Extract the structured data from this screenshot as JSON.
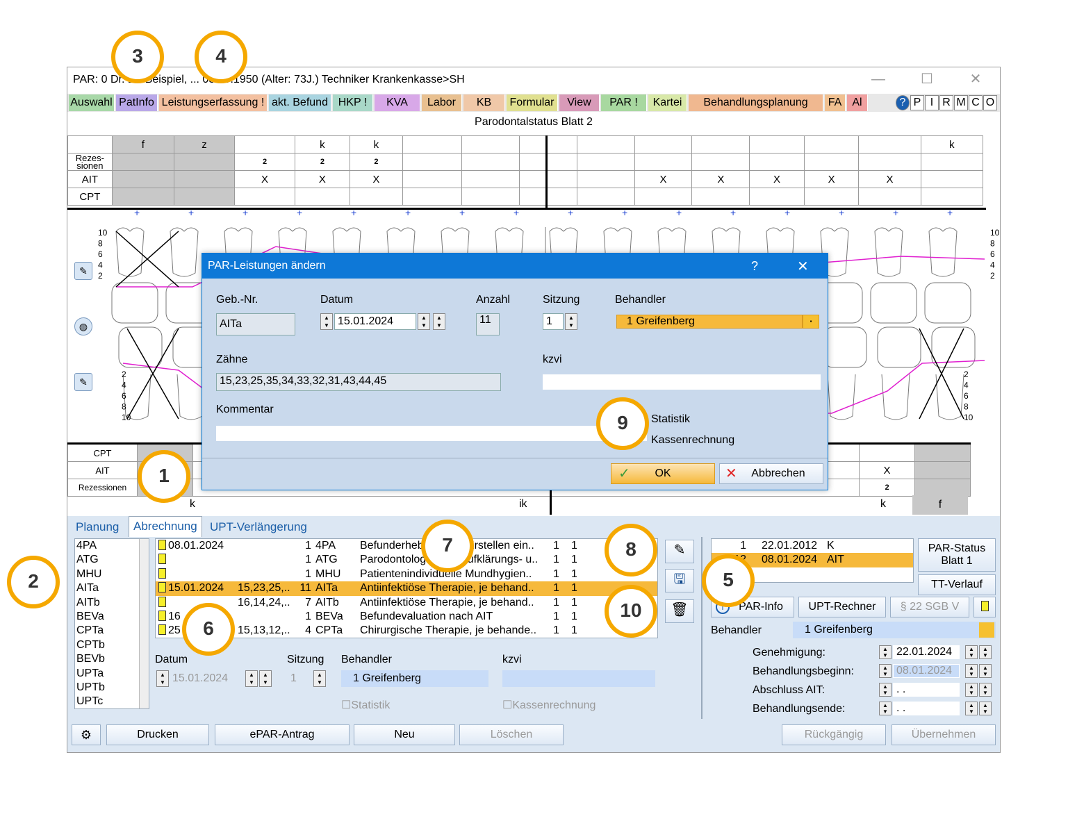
{
  "window": {
    "title": "PAR: 0  Dr. Dr. Beispiel, ... 03.09.1950 (Alter: 73J.)  Techniker Krankenkasse>SH",
    "minimize": "—",
    "maximize": "☐",
    "close": "✕"
  },
  "tabs": [
    {
      "label": "Auswahl",
      "color": "#a8d8a8"
    },
    {
      "label": "PatInfo",
      "color": "#b9a8e8"
    },
    {
      "label": "Leistungserfassung !",
      "color": "#f3c0a0"
    },
    {
      "label": "akt. Befund",
      "color": "#a9d4e0"
    },
    {
      "label": "HKP !",
      "color": "#a9d8c8"
    },
    {
      "label": "KVA",
      "color": "#d8a8e8"
    },
    {
      "label": "Labor",
      "color": "#e8c090"
    },
    {
      "label": "KB",
      "color": "#f0c8a8"
    },
    {
      "label": "Formular",
      "color": "#e0e090"
    },
    {
      "label": "View",
      "color": "#d89ab8"
    },
    {
      "label": "PAR !",
      "color": "#a8d8a0"
    },
    {
      "label": "Kartei",
      "color": "#d8e8a8"
    },
    {
      "label": "Behandlungsplanung",
      "color": "#f0b890"
    },
    {
      "label": "FA",
      "color": "#f0c090"
    },
    {
      "label": "Al",
      "color": "#f0a0a0"
    }
  ],
  "quick_buttons": [
    "?",
    "P",
    "I",
    "R",
    "M",
    "C",
    "O"
  ],
  "sheet_title": "Parodontalstatus Blatt 2",
  "upper_grid": {
    "row_labels": [
      "Rezes-\nsionen",
      "AIT",
      "CPT"
    ],
    "header": [
      "f",
      "z",
      "",
      "k",
      "k",
      "",
      "",
      "",
      "",
      "",
      "",
      "",
      "",
      "",
      "k",
      ""
    ],
    "rezessionen": [
      "",
      "",
      "2",
      "2",
      "2",
      "",
      "",
      "",
      "",
      "",
      "",
      "",
      "",
      "",
      "",
      ""
    ],
    "ait": [
      "",
      "",
      "X",
      "X",
      "X",
      "",
      "",
      "",
      "",
      "X",
      "X",
      "X",
      "X",
      "X",
      ""
    ]
  },
  "scale_labels_top": [
    "10",
    "8",
    "6",
    "4",
    "2"
  ],
  "scale_labels_bottom": [
    "2",
    "4",
    "6",
    "8",
    "10"
  ],
  "lower_grid": {
    "row_labels": [
      "CPT",
      "AIT",
      "Rezessionen"
    ],
    "ait_right": "X",
    "rez_right": "2",
    "bottom": [
      "k",
      "ik",
      "k",
      "f"
    ]
  },
  "lower_tabs": [
    "Planung",
    "Abrechnung",
    "UPT-Verlängerung"
  ],
  "codes": [
    "4PA",
    "ATG",
    "MHU",
    "AITa",
    "AITb",
    "BEVa",
    "CPTa",
    "CPTb",
    "BEVb",
    "UPTa",
    "UPTb",
    "UPTc"
  ],
  "records": [
    {
      "date": "08.01.2024",
      "teeth": "",
      "count": "1",
      "code": "4PA",
      "desc": "Befunderhebung und Erstellen ein..",
      "a": "1",
      "b": "1"
    },
    {
      "date": "",
      "teeth": "",
      "count": "1",
      "code": "ATG",
      "desc": "Parodontologisches Aufklärungs- u..",
      "a": "1",
      "b": "1"
    },
    {
      "date": "",
      "teeth": "",
      "count": "1",
      "code": "MHU",
      "desc": "Patientenindividuelle Mundhygien..",
      "a": "1",
      "b": "1"
    },
    {
      "date": "15.01.2024",
      "teeth": "15,23,25,..",
      "count": "11",
      "code": "AITa",
      "desc": "Antiinfektiöse Therapie, je behand..",
      "a": "1",
      "b": "1"
    },
    {
      "date": "",
      "teeth": "16,14,24,..",
      "count": "7",
      "code": "AITb",
      "desc": "Antiinfektiöse Therapie, je behand..",
      "a": "1",
      "b": "1"
    },
    {
      "date": "16",
      "teeth": "",
      "count": "1",
      "code": "BEVa",
      "desc": "Befundevaluation nach AIT",
      "a": "1",
      "b": "1"
    },
    {
      "date": "25",
      "teeth": "15,13,12,..",
      "count": "4",
      "code": "CPTa",
      "desc": "Chirurgische Therapie, je behande..",
      "a": "1",
      "b": "1"
    }
  ],
  "detail": {
    "datum_label": "Datum",
    "datum": "15.01.2024",
    "sitzung_label": "Sitzung",
    "sitzung": "1",
    "behandler_label": "Behandler",
    "behandler": "1 Greifenberg",
    "kzvi_label": "kzvi",
    "statistik": "Statistik",
    "kassen": "Kassenrechnung"
  },
  "status_list": [
    {
      "no": "1",
      "date": "22.01.2012",
      "code": "K"
    },
    {
      "no": "12",
      "date": "08.01.2024",
      "code": "AIT"
    }
  ],
  "right_buttons": {
    "par_status": "PAR-Status\nBlatt 1",
    "tt_verlauf": "TT-Verlauf",
    "par_info": "PAR-Info",
    "upt_rechner": "UPT-Rechner",
    "sgb": "§ 22 SGB V"
  },
  "right_fields": {
    "behandler_label": "Behandler",
    "behandler": "1 Greifenberg",
    "genehmigung_label": "Genehmigung:",
    "genehmigung": "22.01.2024",
    "beginn_label": "Behandlungsbeginn:",
    "beginn": "08.01.2024",
    "abschluss_label": "Abschluss AIT:",
    "abschluss": "  .   .",
    "ende_label": "Behandlungsende:",
    "ende": "  .   ."
  },
  "bottom_buttons": {
    "drucken": "Drucken",
    "epar": "ePAR-Antrag",
    "neu": "Neu",
    "loeschen": "Löschen",
    "rueck": "Rückgängig",
    "uebernehmen": "Übernehmen"
  },
  "dialog": {
    "title": "PAR-Leistungen ändern",
    "help": "?",
    "close": "✕",
    "geb_label": "Geb.-Nr.",
    "geb": "AITa",
    "datum_label": "Datum",
    "datum": "15.01.2024",
    "anzahl_label": "Anzahl",
    "anzahl": "11",
    "sitzung_label": "Sitzung",
    "sitzung": "1",
    "behandler_label": "Behandler",
    "behandler": "1 Greifenberg",
    "zaehne_label": "Zähne",
    "zaehne": "15,23,25,35,34,33,32,31,43,44,45",
    "kzvi_label": "kzvi",
    "kommentar_label": "Kommentar",
    "kommentar": "",
    "statistik": "Statistik",
    "kassen": "Kassenrechnung",
    "ok": "OK",
    "abbrechen": "Abbrechen"
  },
  "callouts": [
    "1",
    "2",
    "3",
    "4",
    "5",
    "6",
    "7",
    "8",
    "9",
    "10"
  ]
}
